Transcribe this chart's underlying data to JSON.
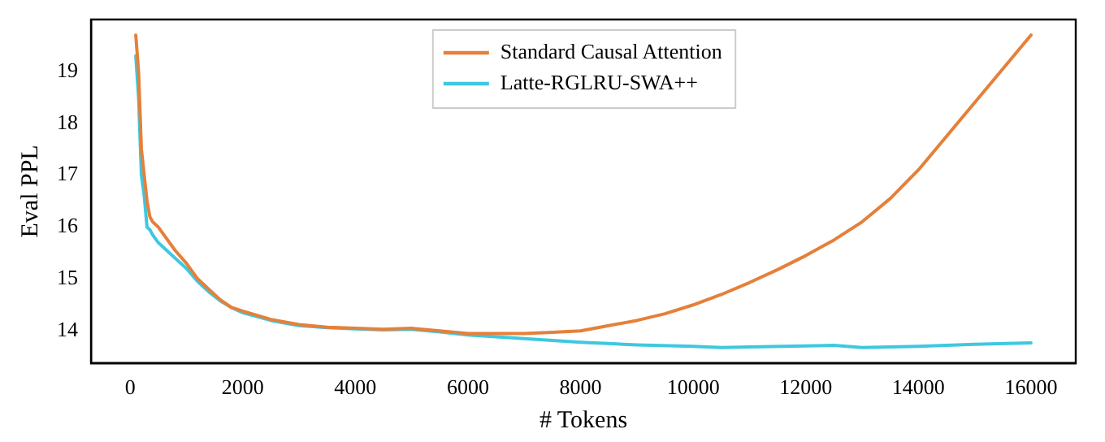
{
  "chart_data": {
    "type": "line",
    "xlabel": "# Tokens",
    "ylabel": "Eval PPL",
    "xlim": [
      -695,
      16795
    ],
    "ylim": [
      13.38,
      20.0
    ],
    "xticks": [
      0,
      2000,
      4000,
      6000,
      8000,
      10000,
      12000,
      14000,
      16000
    ],
    "yticks": [
      14,
      15,
      16,
      17,
      18,
      19
    ],
    "grid": false,
    "legend": "top",
    "marker": "none",
    "line_style": "solid",
    "series": [
      {
        "name": "Standard Causal Attention",
        "color": "#e5803a",
        "x": [
          100,
          150,
          200,
          250,
          300,
          350,
          400,
          500,
          600,
          800,
          1000,
          1200,
          1400,
          1600,
          1800,
          2000,
          2500,
          3000,
          3500,
          4000,
          4500,
          5000,
          5500,
          6000,
          7000,
          7500,
          8000,
          8500,
          9000,
          9500,
          10000,
          10500,
          11000,
          11500,
          12000,
          12500,
          13000,
          13500,
          14000,
          14500,
          15000,
          15500,
          16000
        ],
        "values": [
          19.7,
          19.0,
          17.5,
          17.0,
          16.5,
          16.2,
          16.1,
          16.0,
          15.85,
          15.55,
          15.3,
          15.0,
          14.8,
          14.6,
          14.45,
          14.38,
          14.22,
          14.12,
          14.07,
          14.05,
          14.03,
          14.05,
          14.0,
          13.95,
          13.95,
          13.97,
          14.0,
          14.1,
          14.2,
          14.33,
          14.5,
          14.7,
          14.93,
          15.18,
          15.45,
          15.75,
          16.1,
          16.55,
          17.1,
          17.75,
          18.4,
          19.05,
          19.7
        ]
      },
      {
        "name": "Latte-RGLRU-SWA++",
        "color": "#3ec8e0",
        "x": [
          100,
          150,
          200,
          250,
          300,
          350,
          400,
          500,
          600,
          800,
          1000,
          1200,
          1400,
          1600,
          1800,
          2000,
          2500,
          3000,
          3500,
          4000,
          4500,
          5000,
          5500,
          6000,
          7000,
          8000,
          9000,
          10000,
          10500,
          11000,
          12000,
          12500,
          13000,
          14000,
          15000,
          16000
        ],
        "values": [
          19.3,
          18.5,
          17.0,
          16.6,
          16.0,
          15.95,
          15.85,
          15.7,
          15.6,
          15.4,
          15.2,
          14.95,
          14.75,
          14.58,
          14.45,
          14.35,
          14.2,
          14.1,
          14.06,
          14.04,
          14.02,
          14.03,
          13.98,
          13.92,
          13.85,
          13.78,
          13.73,
          13.7,
          13.68,
          13.69,
          13.71,
          13.72,
          13.68,
          13.7,
          13.74,
          13.77
        ]
      }
    ]
  }
}
